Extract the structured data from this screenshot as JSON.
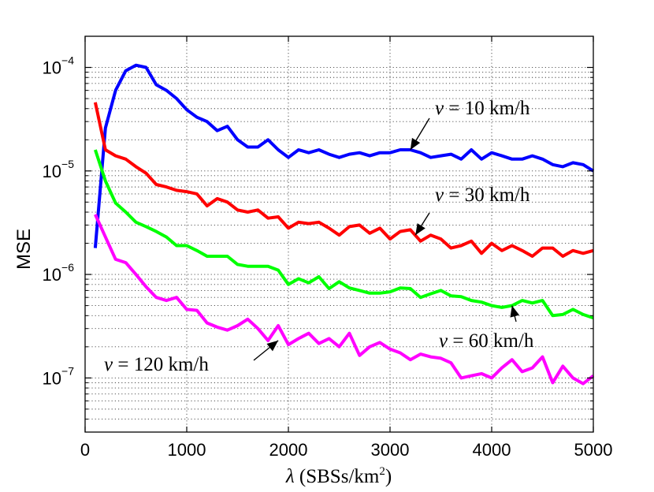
{
  "chart_data": {
    "type": "line",
    "title": "",
    "ylabel": "MSE",
    "xlabel_symbol": "λ",
    "xlabel_units_prefix": "(SBSs/km",
    "xlabel_units_exp": "2",
    "xlabel_units_suffix": ")",
    "xlim": [
      0,
      5000
    ],
    "ylim": [
      3e-08,
      0.0002
    ],
    "yscale": "log",
    "grid": true,
    "x_ticks": [
      0,
      1000,
      2000,
      3000,
      4000,
      5000
    ],
    "x_tick_labels": [
      "0",
      "1000",
      "2000",
      "3000",
      "4000",
      "5000"
    ],
    "y_ticks": [
      1e-07,
      1e-06,
      1e-05,
      0.0001
    ],
    "y_tick_labels": [
      {
        "base": "10",
        "exp": "−7"
      },
      {
        "base": "10",
        "exp": "−6"
      },
      {
        "base": "10",
        "exp": "−5"
      },
      {
        "base": "10",
        "exp": "−4"
      }
    ],
    "x": [
      100,
      200,
      300,
      400,
      500,
      600,
      700,
      800,
      900,
      1000,
      1100,
      1200,
      1300,
      1400,
      1500,
      1600,
      1700,
      1800,
      1900,
      2000,
      2100,
      2200,
      2300,
      2400,
      2500,
      2600,
      2700,
      2800,
      2900,
      3000,
      3100,
      3200,
      3300,
      3400,
      3500,
      3600,
      3700,
      3800,
      3900,
      4000,
      4100,
      4200,
      4300,
      4400,
      4500,
      4600,
      4700,
      4800,
      4900,
      5000
    ],
    "series": [
      {
        "name": "v = 10 km/h",
        "color": "#0000ff",
        "values": [
          1.8e-06,
          2.6e-05,
          6e-05,
          9.3e-05,
          0.000105,
          0.0001,
          6.8e-05,
          6e-05,
          5e-05,
          3.9e-05,
          3.3e-05,
          3e-05,
          2.45e-05,
          2.7e-05,
          2e-05,
          1.7e-05,
          1.7e-05,
          2e-05,
          1.6e-05,
          1.35e-05,
          1.6e-05,
          1.5e-05,
          1.6e-05,
          1.45e-05,
          1.35e-05,
          1.45e-05,
          1.5e-05,
          1.4e-05,
          1.5e-05,
          1.5e-05,
          1.6e-05,
          1.6e-05,
          1.5e-05,
          1.35e-05,
          1.4e-05,
          1.45e-05,
          1.3e-05,
          1.6e-05,
          1.3e-05,
          1.5e-05,
          1.4e-05,
          1.3e-05,
          1.3e-05,
          1.4e-05,
          1.3e-05,
          1.15e-05,
          1.1e-05,
          1.2e-05,
          1.15e-05,
          1e-05
        ]
      },
      {
        "name": "v = 30 km/h",
        "color": "#ff0000",
        "values": [
          4.6e-05,
          1.6e-05,
          1.4e-05,
          1.3e-05,
          1.1e-05,
          9.5e-06,
          7.4e-06,
          7e-06,
          6.5e-06,
          6.3e-06,
          6e-06,
          4.6e-06,
          5.4e-06,
          5e-06,
          4.2e-06,
          4e-06,
          4.2e-06,
          3.5e-06,
          3.6e-06,
          2.8e-06,
          3.2e-06,
          3.1e-06,
          3.2e-06,
          2.8e-06,
          2.4e-06,
          2.9e-06,
          3e-06,
          2.5e-06,
          2.8e-06,
          2.2e-06,
          2.6e-06,
          2.7e-06,
          2.1e-06,
          2.4e-06,
          2.2e-06,
          1.8e-06,
          1.9e-06,
          2.1e-06,
          1.6e-06,
          2e-06,
          1.7e-06,
          1.9e-06,
          1.7e-06,
          1.5e-06,
          1.8e-06,
          1.8e-06,
          1.5e-06,
          1.7e-06,
          1.6e-06,
          1.7e-06
        ]
      },
      {
        "name": "v = 60 km/h",
        "color": "#00ff00",
        "values": [
          1.6e-05,
          8e-06,
          4.9e-06,
          4e-06,
          3.2e-06,
          2.9e-06,
          2.6e-06,
          2.3e-06,
          1.9e-06,
          1.9e-06,
          1.7e-06,
          1.5e-06,
          1.5e-06,
          1.5e-06,
          1.25e-06,
          1.2e-06,
          1.2e-06,
          1.2e-06,
          1.1e-06,
          8e-07,
          9.1e-07,
          8.3e-07,
          9.5e-07,
          7.3e-07,
          8.5e-07,
          7.4e-07,
          7e-07,
          6.6e-07,
          6.6e-07,
          6.8e-07,
          7.4e-07,
          7.3e-07,
          6e-07,
          6.5e-07,
          7e-07,
          6.2e-07,
          6.1e-07,
          5.6e-07,
          5.4e-07,
          5e-07,
          4.8e-07,
          5e-07,
          5.6e-07,
          5.3e-07,
          5.6e-07,
          4e-07,
          4.1e-07,
          4.6e-07,
          4.1e-07,
          3.8e-07
        ]
      },
      {
        "name": "v = 120 km/h",
        "color": "#ff00ff",
        "values": [
          3.8e-06,
          2.3e-06,
          1.4e-06,
          1.3e-06,
          1e-06,
          7.6e-07,
          6e-07,
          5.6e-07,
          6e-07,
          4.6e-07,
          4.5e-07,
          3.4e-07,
          3.1e-07,
          2.9e-07,
          3.2e-07,
          3.7e-07,
          3e-07,
          2.3e-07,
          3.2e-07,
          2.1e-07,
          2.4e-07,
          2.7e-07,
          2.15e-07,
          2.4e-07,
          2e-07,
          2.7e-07,
          1.65e-07,
          2e-07,
          2.2e-07,
          1.9e-07,
          1.75e-07,
          1.5e-07,
          1.7e-07,
          1.6e-07,
          1.55e-07,
          1.4e-07,
          1e-07,
          1.05e-07,
          1.1e-07,
          1e-07,
          1.25e-07,
          1.5e-07,
          1.15e-07,
          1.25e-07,
          1.6e-07,
          9e-08,
          1.3e-07,
          1e-07,
          8.8e-08,
          1.05e-07
        ]
      }
    ],
    "annotations": [
      {
        "var": "v",
        "rest": " = 10 km/h",
        "point": [
          3200,
          1.6e-05
        ]
      },
      {
        "var": "v",
        "rest": " = 30 km/h",
        "point": [
          3250,
          2.4e-06
        ]
      },
      {
        "var": "v",
        "rest": " = 60 km/h",
        "point": [
          4200,
          5e-07
        ]
      },
      {
        "var": "v",
        "rest": " = 120 km/h",
        "point": [
          1900,
          2.3e-07
        ]
      }
    ]
  }
}
